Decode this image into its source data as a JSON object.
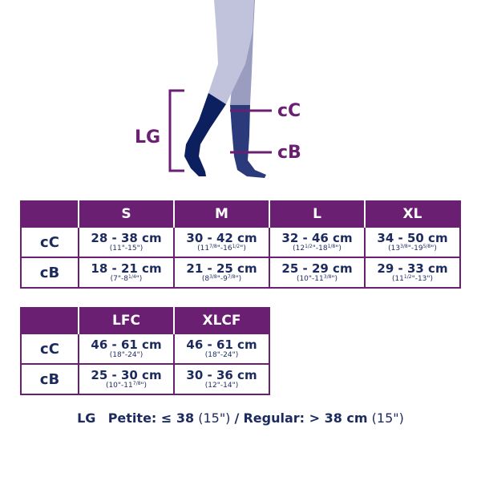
{
  "colors": {
    "purple": "#6b1f73",
    "navy": "#1c2a5e",
    "sock_front": "#0c2060",
    "sock_back": "#2b3a7a",
    "leg_front": "#c1c3dc",
    "leg_back": "#9b9dc0"
  },
  "diagram": {
    "lg": "LG",
    "cc": "cC",
    "cb": "cB"
  },
  "table1": {
    "headers": [
      "",
      "S",
      "M",
      "L",
      "XL"
    ],
    "rows": [
      {
        "label": "cC",
        "cells": [
          {
            "cm": "28 - 38 cm",
            "in": [
              {
                "t": "(11\"-15\")"
              }
            ]
          },
          {
            "cm": "30 - 42 cm",
            "in": [
              {
                "t": "(11"
              },
              {
                "sup": "7/8"
              },
              {
                "t": "\"-16"
              },
              {
                "sup": "1/2"
              },
              {
                "t": "\")"
              }
            ]
          },
          {
            "cm": "32 - 46 cm",
            "in": [
              {
                "t": "(12"
              },
              {
                "sup": "1/2"
              },
              {
                "t": "\"-18"
              },
              {
                "sup": "1/8"
              },
              {
                "t": "\")"
              }
            ]
          },
          {
            "cm": "34 - 50 cm",
            "in": [
              {
                "t": "(13"
              },
              {
                "sup": "3/8"
              },
              {
                "t": "\"-19"
              },
              {
                "sup": "5/8"
              },
              {
                "t": "\")"
              }
            ]
          }
        ]
      },
      {
        "label": "cB",
        "cells": [
          {
            "cm": "18 - 21 cm",
            "in": [
              {
                "t": "(7\"-8"
              },
              {
                "sup": "1/4"
              },
              {
                "t": "\")"
              }
            ]
          },
          {
            "cm": "21 - 25 cm",
            "in": [
              {
                "t": "(8"
              },
              {
                "sup": "3/8"
              },
              {
                "t": "\"-9"
              },
              {
                "sup": "7/8"
              },
              {
                "t": "\")"
              }
            ]
          },
          {
            "cm": "25 - 29 cm",
            "in": [
              {
                "t": "(10\"-11"
              },
              {
                "sup": "3/8"
              },
              {
                "t": "\")"
              }
            ]
          },
          {
            "cm": "29 - 33 cm",
            "in": [
              {
                "t": "(11"
              },
              {
                "sup": "1/2"
              },
              {
                "t": "\"-13\")"
              }
            ]
          }
        ]
      }
    ]
  },
  "table2": {
    "headers": [
      "",
      "LFC",
      "XLCF"
    ],
    "rows": [
      {
        "label": "cC",
        "cells": [
          {
            "cm": "46 - 61 cm",
            "in": [
              {
                "t": "(18\"-24\")"
              }
            ]
          },
          {
            "cm": "46 - 61 cm",
            "in": [
              {
                "t": "(18\"-24\")"
              }
            ]
          }
        ]
      },
      {
        "label": "cB",
        "cells": [
          {
            "cm": "25 - 30 cm",
            "in": [
              {
                "t": "(10\"-11"
              },
              {
                "sup": "7/8"
              },
              {
                "t": "\")"
              }
            ]
          },
          {
            "cm": "30 - 36 cm",
            "in": [
              {
                "t": "(12\"-14\")"
              }
            ]
          }
        ]
      }
    ]
  },
  "footer": {
    "lg": "LG",
    "petite": "Petite: ≤ 38",
    "petite_in": "(15\")",
    "sep": "/",
    "regular": "Regular: > 38 cm",
    "regular_in": "(15\")"
  }
}
